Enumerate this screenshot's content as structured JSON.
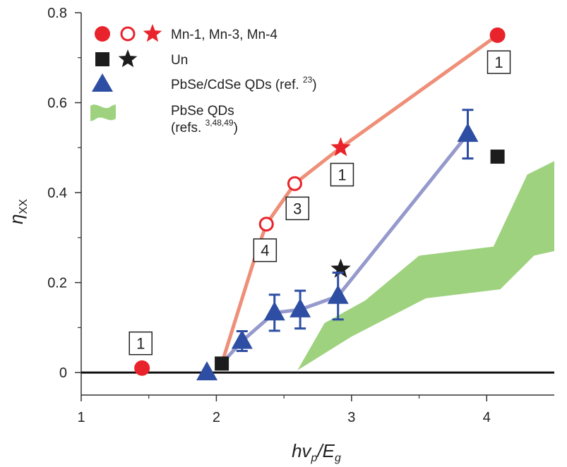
{
  "chart_data": {
    "type": "scatter",
    "xlabel": {
      "base": "hv",
      "sub1": "p",
      "slash": "/E",
      "sub2": "g"
    },
    "ylabel": {
      "base": "η",
      "sub": "XX"
    },
    "xlim": [
      1,
      4.5
    ],
    "ylim": [
      -0.05,
      0.8
    ],
    "xticks": [
      {
        "v": 1,
        "label": "1"
      },
      {
        "v": 2,
        "label": "2"
      },
      {
        "v": 3,
        "label": "3"
      },
      {
        "v": 4,
        "label": "4"
      }
    ],
    "yticks": [
      {
        "v": 0,
        "label": "0"
      },
      {
        "v": 0.2,
        "label": "0.2"
      },
      {
        "v": 0.4,
        "label": "0.4"
      },
      {
        "v": 0.6,
        "label": "0.6"
      },
      {
        "v": 0.8,
        "label": "0.8"
      }
    ],
    "colors": {
      "mn": "#e8232b",
      "mn_line": "#ef8f78",
      "un": "#1c1c1c",
      "qd": "#2e4ea3",
      "qd_line": "#9599cc",
      "band": "#9ed27e"
    },
    "mn_line": [
      {
        "x": 2.04,
        "y": 0.02
      },
      {
        "x": 2.3,
        "y": 0.27
      },
      {
        "x": 2.37,
        "y": 0.33
      },
      {
        "x": 2.58,
        "y": 0.42
      },
      {
        "x": 2.92,
        "y": 0.5
      },
      {
        "x": 4.08,
        "y": 0.75
      }
    ],
    "series": [
      {
        "name": "Mn-1",
        "marker": "filled-circle",
        "points": [
          {
            "x": 1.45,
            "y": 0.01
          },
          {
            "x": 4.08,
            "y": 0.75
          }
        ]
      },
      {
        "name": "Mn-3",
        "marker": "open-circle",
        "points": [
          {
            "x": 2.58,
            "y": 0.42
          }
        ]
      },
      {
        "name": "Mn-4",
        "marker": "open-circle",
        "points": [
          {
            "x": 2.37,
            "y": 0.33
          }
        ]
      },
      {
        "name": "Mn-1 (star)",
        "marker": "red-star",
        "points": [
          {
            "x": 2.92,
            "y": 0.5
          }
        ]
      },
      {
        "name": "Un",
        "marker": "black-square",
        "points": [
          {
            "x": 2.04,
            "y": 0.02
          },
          {
            "x": 4.08,
            "y": 0.48
          }
        ]
      },
      {
        "name": "Un (star)",
        "marker": "black-star",
        "points": [
          {
            "x": 2.92,
            "y": 0.23
          }
        ]
      },
      {
        "name": "PbSe/CdSe QDs",
        "marker": "triangle",
        "points": [
          {
            "x": 1.93,
            "y": 0.0
          },
          {
            "x": 2.19,
            "y": 0.07,
            "err": 0.022
          },
          {
            "x": 2.43,
            "y": 0.133,
            "err": 0.04
          },
          {
            "x": 2.62,
            "y": 0.14,
            "err": 0.042
          },
          {
            "x": 2.9,
            "y": 0.17,
            "err": 0.052
          },
          {
            "x": 3.86,
            "y": 0.53,
            "err": 0.054
          }
        ]
      }
    ],
    "band": {
      "name": "PbSe QDs",
      "upper": [
        {
          "x": 2.8,
          "y": 0.11
        },
        {
          "x": 3.1,
          "y": 0.16
        },
        {
          "x": 3.5,
          "y": 0.26
        },
        {
          "x": 4.05,
          "y": 0.28
        },
        {
          "x": 4.3,
          "y": 0.44
        },
        {
          "x": 4.5,
          "y": 0.47
        }
      ],
      "lower": [
        {
          "x": 4.5,
          "y": 0.27
        },
        {
          "x": 4.35,
          "y": 0.26
        },
        {
          "x": 4.1,
          "y": 0.185
        },
        {
          "x": 3.55,
          "y": 0.165
        },
        {
          "x": 3.0,
          "y": 0.08
        },
        {
          "x": 2.6,
          "y": 0.005
        }
      ]
    },
    "box_labels": [
      {
        "x": 1.44,
        "y": 0.065,
        "text": "1"
      },
      {
        "x": 4.09,
        "y": 0.69,
        "text": "1"
      },
      {
        "x": 2.93,
        "y": 0.44,
        "text": "1"
      },
      {
        "x": 2.6,
        "y": 0.365,
        "text": "3"
      },
      {
        "x": 2.36,
        "y": 0.272,
        "text": "4"
      }
    ],
    "legend": [
      {
        "label": "Mn-1, Mn-3, Mn-4",
        "sup": "",
        "line2": ""
      },
      {
        "label": "Un",
        "sup": "",
        "line2": ""
      },
      {
        "label": "PbSe/CdSe QDs (ref. ",
        "sup": "23",
        "suffix": ")",
        "line2": ""
      },
      {
        "label": "PbSe QDs",
        "sup": "3,48,49",
        "line2": "(refs. ",
        "suffix": ")"
      }
    ]
  }
}
